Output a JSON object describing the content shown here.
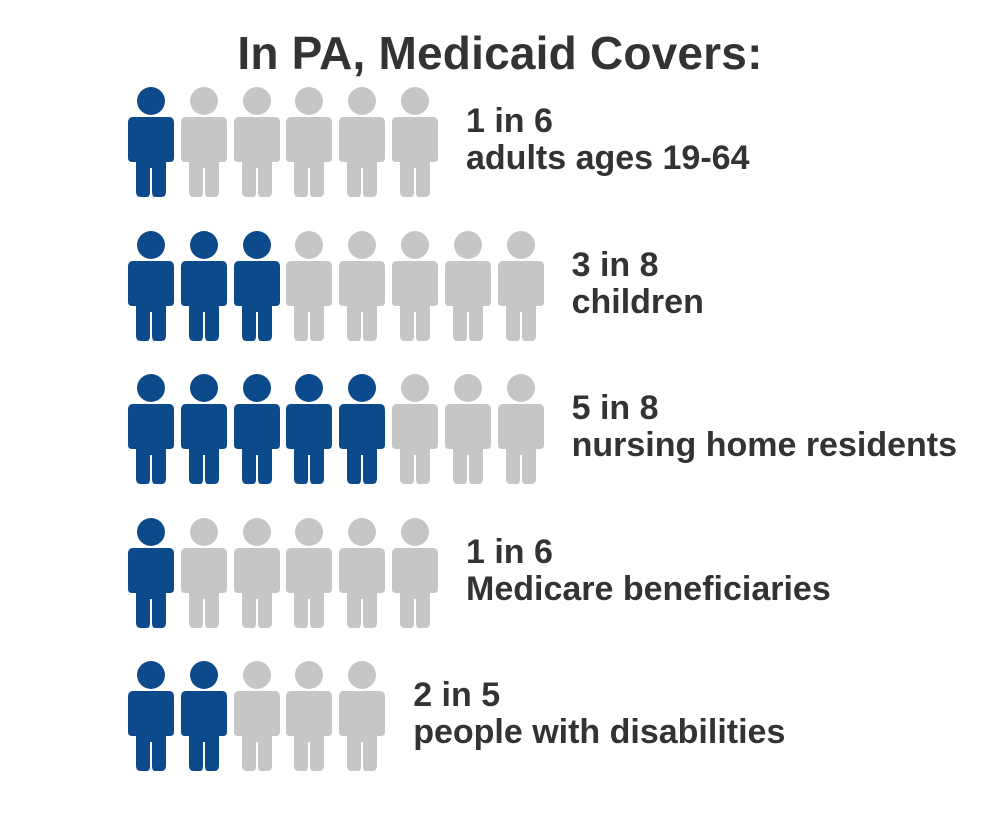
{
  "title": "In PA, Medicaid Covers:",
  "colors": {
    "filled": "#0d4a8c",
    "empty": "#c6c6c6",
    "text": "#333333"
  },
  "icon": "person-icon",
  "chart_data": {
    "type": "pictograph",
    "title": "In PA, Medicaid Covers:",
    "rows": [
      {
        "ratio": "1 in 6",
        "category": "adults ages 19-64",
        "covered": 1,
        "total": 6
      },
      {
        "ratio": "3 in 8",
        "category": "children",
        "covered": 3,
        "total": 8
      },
      {
        "ratio": "5 in 8",
        "category": "nursing home residents",
        "covered": 5,
        "total": 8
      },
      {
        "ratio": "1 in 6",
        "category": "Medicare beneficiaries",
        "covered": 1,
        "total": 6
      },
      {
        "ratio": "2 in 5",
        "category": "people with disabilities",
        "covered": 2,
        "total": 5
      }
    ]
  }
}
